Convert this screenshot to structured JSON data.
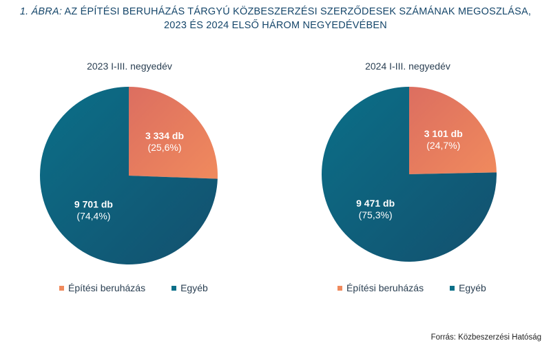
{
  "header": {
    "title_prefix": "1. ÁBRA:",
    "title_line1": "AZ ÉPÍTÉSI BERUHÁZÁS TÁRGYÚ KÖZBESZERZÉSI SZERZŐDESEK SZÁMÁNAK MEGOSZLÁSA,",
    "title_line2": "2023 ÉS 2024 ELSŐ HÁROM NEGYEDÉVÉBEN"
  },
  "colors": {
    "epitesi": "#f08a5d",
    "epitesi_dark": "#dc6e60",
    "egyeb": "#0b6f88",
    "egyeb_dark": "#13506e"
  },
  "chart_data": [
    {
      "type": "pie",
      "title": "2023 I-III. negyedév",
      "slices": [
        {
          "name": "Építési beruházás",
          "count_label": "3 334 db",
          "pct_label": "(25,6%)",
          "value": 3334,
          "percent": 25.6
        },
        {
          "name": "Egyéb",
          "count_label": "9 701 db",
          "pct_label": "(74,4%)",
          "value": 9701,
          "percent": 74.4
        }
      ],
      "legend": [
        "Építési beruházás",
        "Egyéb"
      ],
      "legend_position": "bottom"
    },
    {
      "type": "pie",
      "title": "2024 I-III. negyedév",
      "slices": [
        {
          "name": "Építési beruházás",
          "count_label": "3 101 db",
          "pct_label": "(24,7%)",
          "value": 3101,
          "percent": 24.7
        },
        {
          "name": "Egyéb",
          "count_label": "9 471 db",
          "pct_label": "(75,3%)",
          "value": 9471,
          "percent": 75.3
        }
      ],
      "legend": [
        "Építési beruházás",
        "Egyéb"
      ],
      "legend_position": "bottom"
    }
  ],
  "footer": {
    "source": "Forrás: Közbeszerzési Hatóság"
  }
}
